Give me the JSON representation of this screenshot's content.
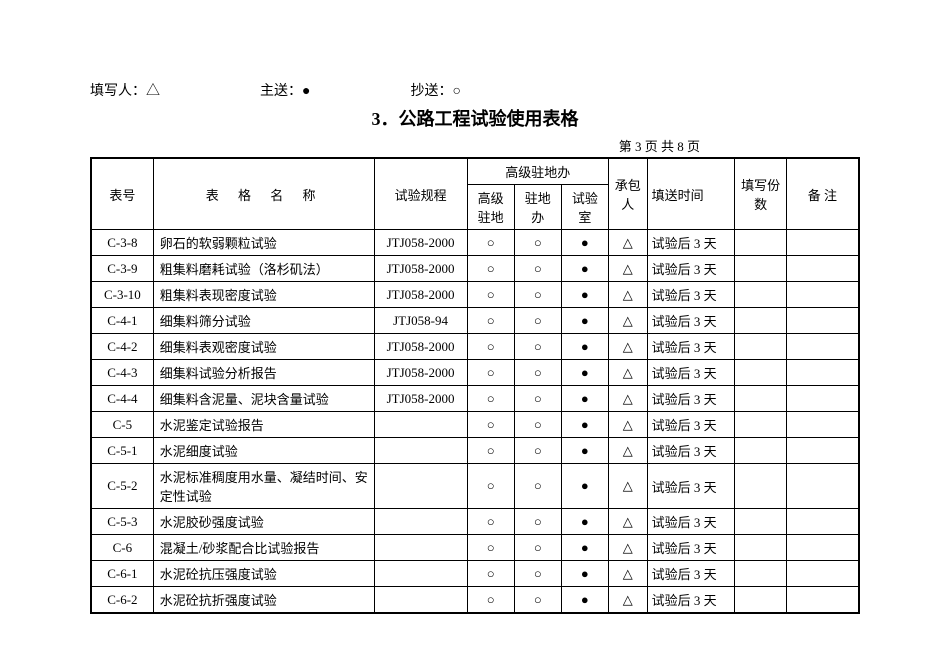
{
  "header": {
    "filler_label": "填写人：",
    "filler_symbol": "△",
    "main_send_label": "主送：",
    "main_send_symbol": "●",
    "cc_label": "抄送：",
    "cc_symbol": "○"
  },
  "title": "3．公路工程试验使用表格",
  "page_info": "第 3 页 共 8 页",
  "columns": {
    "id": "表号",
    "name": "表 格 名 称",
    "spec": "试验规程",
    "senior_office_group": "高级驻地办",
    "senior": "高级驻地",
    "station": "驻地办",
    "lab": "试验室",
    "contractor": "承包人",
    "time": "填送时间",
    "count": "填写份数",
    "remark": "备 注"
  },
  "rows": [
    {
      "id": "C-3-8",
      "name": "卵石的软弱颗粒试验",
      "spec": "JTJ058-2000",
      "senior": "○",
      "station": "○",
      "lab": "●",
      "contractor": "△",
      "time": "试验后 3 天",
      "count": "",
      "remark": ""
    },
    {
      "id": "C-3-9",
      "name": "粗集料磨耗试验（洛杉矶法）",
      "spec": "JTJ058-2000",
      "senior": "○",
      "station": "○",
      "lab": "●",
      "contractor": "△",
      "time": "试验后 3 天",
      "count": "",
      "remark": ""
    },
    {
      "id": "C-3-10",
      "name": "粗集料表现密度试验",
      "spec": "JTJ058-2000",
      "senior": "○",
      "station": "○",
      "lab": "●",
      "contractor": "△",
      "time": "试验后 3 天",
      "count": "",
      "remark": ""
    },
    {
      "id": "C-4-1",
      "name": "细集料筛分试验",
      "spec": "JTJ058-94",
      "senior": "○",
      "station": "○",
      "lab": "●",
      "contractor": "△",
      "time": "试验后 3 天",
      "count": "",
      "remark": ""
    },
    {
      "id": "C-4-2",
      "name": "细集料表观密度试验",
      "spec": "JTJ058-2000",
      "senior": "○",
      "station": "○",
      "lab": "●",
      "contractor": "△",
      "time": "试验后 3 天",
      "count": "",
      "remark": ""
    },
    {
      "id": "C-4-3",
      "name": "细集料试验分析报告",
      "spec": "JTJ058-2000",
      "senior": "○",
      "station": "○",
      "lab": "●",
      "contractor": "△",
      "time": "试验后 3 天",
      "count": "",
      "remark": ""
    },
    {
      "id": "C-4-4",
      "name": "细集料含泥量、泥块含量试验",
      "spec": "JTJ058-2000",
      "senior": "○",
      "station": "○",
      "lab": "●",
      "contractor": "△",
      "time": "试验后 3 天",
      "count": "",
      "remark": ""
    },
    {
      "id": "C-5",
      "name": "水泥鉴定试验报告",
      "spec": "",
      "senior": "○",
      "station": "○",
      "lab": "●",
      "contractor": "△",
      "time": "试验后 3 天",
      "count": "",
      "remark": ""
    },
    {
      "id": "C-5-1",
      "name": "水泥细度试验",
      "spec": "",
      "senior": "○",
      "station": "○",
      "lab": "●",
      "contractor": "△",
      "time": "试验后 3 天",
      "count": "",
      "remark": ""
    },
    {
      "id": "C-5-2",
      "name": "水泥标准稠度用水量、凝结时间、安定性试验",
      "spec": "",
      "senior": "○",
      "station": "○",
      "lab": "●",
      "contractor": "△",
      "time": "试验后 3 天",
      "count": "",
      "remark": ""
    },
    {
      "id": "C-5-3",
      "name": "水泥胶砂强度试验",
      "spec": "",
      "senior": "○",
      "station": "○",
      "lab": "●",
      "contractor": "△",
      "time": "试验后 3 天",
      "count": "",
      "remark": ""
    },
    {
      "id": "C-6",
      "name": "混凝土/砂浆配合比试验报告",
      "spec": "",
      "senior": "○",
      "station": "○",
      "lab": "●",
      "contractor": "△",
      "time": "试验后 3 天",
      "count": "",
      "remark": ""
    },
    {
      "id": "C-6-1",
      "name": "水泥砼抗压强度试验",
      "spec": "",
      "senior": "○",
      "station": "○",
      "lab": "●",
      "contractor": "△",
      "time": "试验后 3 天",
      "count": "",
      "remark": ""
    },
    {
      "id": "C-6-2",
      "name": "水泥砼抗折强度试验",
      "spec": "",
      "senior": "○",
      "station": "○",
      "lab": "●",
      "contractor": "△",
      "time": "试验后 3 天",
      "count": "",
      "remark": ""
    }
  ]
}
